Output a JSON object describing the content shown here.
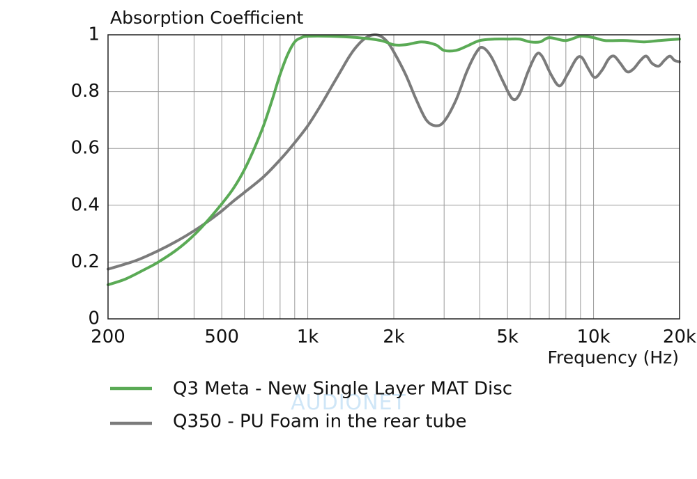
{
  "chart_data": {
    "type": "line",
    "ylabel": "Absorption Coefficient",
    "xlabel": "Frequency  (Hz)",
    "x_scale": "log",
    "xlim": [
      200,
      20000
    ],
    "ylim": [
      0,
      1
    ],
    "x_ticks": [
      {
        "value": 200,
        "label": "200"
      },
      {
        "value": 500,
        "label": "500"
      },
      {
        "value": 1000,
        "label": "1k"
      },
      {
        "value": 2000,
        "label": "2k"
      },
      {
        "value": 5000,
        "label": "5k"
      },
      {
        "value": 10000,
        "label": "10k"
      },
      {
        "value": 20000,
        "label": "20k"
      }
    ],
    "y_ticks": [
      {
        "value": 0,
        "label": "0"
      },
      {
        "value": 0.2,
        "label": "0.2"
      },
      {
        "value": 0.4,
        "label": "0.4"
      },
      {
        "value": 0.6,
        "label": "0.6"
      },
      {
        "value": 0.8,
        "label": "0.8"
      },
      {
        "value": 1,
        "label": "1"
      }
    ],
    "grid": true,
    "legend_position": "bottom",
    "series": [
      {
        "name": "Q3 Meta - New Single Layer MAT Disc",
        "color": "#5aaa55",
        "points": [
          [
            200,
            0.12
          ],
          [
            230,
            0.14
          ],
          [
            270,
            0.175
          ],
          [
            300,
            0.2
          ],
          [
            350,
            0.245
          ],
          [
            400,
            0.295
          ],
          [
            450,
            0.35
          ],
          [
            500,
            0.405
          ],
          [
            550,
            0.46
          ],
          [
            600,
            0.525
          ],
          [
            650,
            0.6
          ],
          [
            700,
            0.68
          ],
          [
            750,
            0.77
          ],
          [
            800,
            0.86
          ],
          [
            850,
            0.93
          ],
          [
            900,
            0.975
          ],
          [
            950,
            0.99
          ],
          [
            1000,
            0.995
          ],
          [
            1200,
            0.995
          ],
          [
            1500,
            0.99
          ],
          [
            1800,
            0.98
          ],
          [
            2000,
            0.965
          ],
          [
            2200,
            0.965
          ],
          [
            2500,
            0.975
          ],
          [
            2800,
            0.965
          ],
          [
            3000,
            0.945
          ],
          [
            3300,
            0.945
          ],
          [
            3600,
            0.96
          ],
          [
            4000,
            0.98
          ],
          [
            4500,
            0.985
          ],
          [
            5000,
            0.985
          ],
          [
            5500,
            0.985
          ],
          [
            6000,
            0.975
          ],
          [
            6500,
            0.975
          ],
          [
            7000,
            0.99
          ],
          [
            8000,
            0.98
          ],
          [
            9000,
            0.995
          ],
          [
            10000,
            0.99
          ],
          [
            11000,
            0.98
          ],
          [
            13000,
            0.98
          ],
          [
            15000,
            0.975
          ],
          [
            17000,
            0.98
          ],
          [
            20000,
            0.985
          ]
        ]
      },
      {
        "name": "Q350 - PU Foam in the rear tube",
        "color": "#7b7b7b",
        "points": [
          [
            200,
            0.175
          ],
          [
            250,
            0.205
          ],
          [
            300,
            0.24
          ],
          [
            350,
            0.275
          ],
          [
            400,
            0.31
          ],
          [
            450,
            0.345
          ],
          [
            500,
            0.38
          ],
          [
            550,
            0.415
          ],
          [
            600,
            0.445
          ],
          [
            700,
            0.5
          ],
          [
            800,
            0.56
          ],
          [
            900,
            0.62
          ],
          [
            1000,
            0.68
          ],
          [
            1100,
            0.745
          ],
          [
            1200,
            0.81
          ],
          [
            1300,
            0.87
          ],
          [
            1400,
            0.925
          ],
          [
            1500,
            0.965
          ],
          [
            1600,
            0.99
          ],
          [
            1700,
            1.0
          ],
          [
            1800,
            0.995
          ],
          [
            1900,
            0.975
          ],
          [
            2000,
            0.94
          ],
          [
            2200,
            0.86
          ],
          [
            2400,
            0.77
          ],
          [
            2600,
            0.7
          ],
          [
            2800,
            0.68
          ],
          [
            3000,
            0.695
          ],
          [
            3300,
            0.77
          ],
          [
            3600,
            0.87
          ],
          [
            3900,
            0.94
          ],
          [
            4100,
            0.955
          ],
          [
            4400,
            0.92
          ],
          [
            4800,
            0.84
          ],
          [
            5200,
            0.775
          ],
          [
            5500,
            0.79
          ],
          [
            5900,
            0.87
          ],
          [
            6300,
            0.93
          ],
          [
            6600,
            0.925
          ],
          [
            7100,
            0.86
          ],
          [
            7600,
            0.82
          ],
          [
            8100,
            0.86
          ],
          [
            8700,
            0.915
          ],
          [
            9100,
            0.92
          ],
          [
            9600,
            0.88
          ],
          [
            10100,
            0.85
          ],
          [
            10700,
            0.875
          ],
          [
            11300,
            0.915
          ],
          [
            11800,
            0.925
          ],
          [
            12400,
            0.9
          ],
          [
            13100,
            0.87
          ],
          [
            13800,
            0.88
          ],
          [
            14600,
            0.91
          ],
          [
            15300,
            0.925
          ],
          [
            16000,
            0.9
          ],
          [
            16900,
            0.89
          ],
          [
            17700,
            0.91
          ],
          [
            18500,
            0.925
          ],
          [
            19200,
            0.91
          ],
          [
            20000,
            0.905
          ]
        ]
      }
    ]
  },
  "watermark": "AUDIONET"
}
